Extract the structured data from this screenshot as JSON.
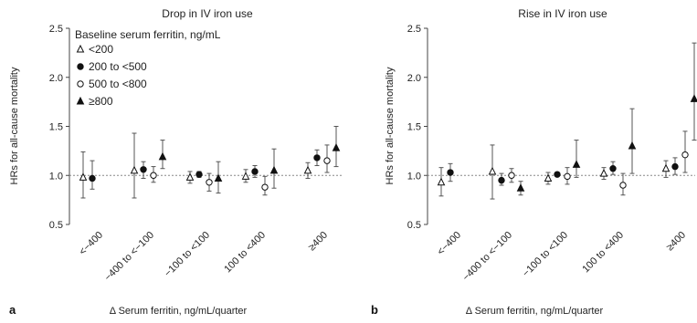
{
  "chart_data": [
    {
      "type": "scatter",
      "panel_label": "a",
      "title": "Drop in IV iron use",
      "xlabel": "Δ Serum ferritin, ng/mL/quarter",
      "ylabel": "HRs for all-cause mortality",
      "ylim": [
        0.5,
        2.5
      ],
      "yticks": [
        "0.5",
        "1.0",
        "1.5",
        "2.0",
        "2.5"
      ],
      "categories": [
        "<−400",
        "−400 to <−100",
        "−100 to <100",
        "100 to <400",
        "≥400"
      ],
      "reference_line": 1.0,
      "legend": {
        "title": "Baseline serum ferritin, ng/mL",
        "placement": "top-left"
      },
      "series": [
        {
          "name": "<200",
          "marker": "open-triangle",
          "values": [
            0.98,
            1.05,
            0.98,
            0.99,
            1.05
          ],
          "lower": [
            0.77,
            0.77,
            0.92,
            0.93,
            0.97
          ],
          "upper": [
            1.24,
            1.43,
            1.04,
            1.06,
            1.13
          ]
        },
        {
          "name": "200 to <500",
          "marker": "filled-circle",
          "values": [
            0.97,
            1.06,
            1.01,
            1.04,
            1.18
          ],
          "lower": [
            0.86,
            0.97,
            0.98,
            0.98,
            1.1
          ],
          "upper": [
            1.15,
            1.14,
            1.04,
            1.1,
            1.26
          ]
        },
        {
          "name": "500 to <800",
          "marker": "open-circle",
          "values": [
            null,
            1.0,
            0.93,
            0.88,
            1.15
          ],
          "lower": [
            null,
            0.93,
            0.84,
            0.8,
            1.03
          ],
          "upper": [
            null,
            1.09,
            1.02,
            0.99,
            1.31
          ]
        },
        {
          "name": "≥800",
          "marker": "filled-triangle",
          "values": [
            null,
            1.19,
            0.97,
            1.05,
            1.28
          ],
          "lower": [
            null,
            1.07,
            0.82,
            0.87,
            1.09
          ],
          "upper": [
            null,
            1.36,
            1.14,
            1.27,
            1.5
          ]
        }
      ]
    },
    {
      "type": "scatter",
      "panel_label": "b",
      "title": "Rise in IV iron use",
      "xlabel": "Δ Serum ferritin, ng/mL/quarter",
      "ylabel": "HRs for all-cause mortality",
      "ylim": [
        0.5,
        2.5
      ],
      "yticks": [
        "0.5",
        "1.0",
        "1.5",
        "2.0",
        "2.5"
      ],
      "categories": [
        "<−400",
        "−400 to <−100",
        "−100 to <100",
        "100 to <400",
        "≥400"
      ],
      "reference_line": 1.0,
      "series": [
        {
          "name": "<200",
          "marker": "open-triangle",
          "values": [
            0.93,
            1.04,
            0.97,
            1.02,
            1.07
          ],
          "lower": [
            0.79,
            0.76,
            0.91,
            0.96,
            0.98
          ],
          "upper": [
            1.08,
            1.31,
            1.03,
            1.08,
            1.15
          ]
        },
        {
          "name": "200 to <500",
          "marker": "filled-circle",
          "values": [
            1.03,
            0.95,
            1.01,
            1.07,
            1.09
          ],
          "lower": [
            0.94,
            0.9,
            0.99,
            1.01,
            1.01
          ],
          "upper": [
            1.12,
            1.02,
            1.03,
            1.14,
            1.18
          ]
        },
        {
          "name": "500 to <800",
          "marker": "open-circle",
          "values": [
            null,
            1.0,
            0.99,
            0.9,
            1.21
          ],
          "lower": [
            null,
            0.93,
            0.91,
            0.8,
            1.03
          ],
          "upper": [
            null,
            1.07,
            1.08,
            1.02,
            1.45
          ]
        },
        {
          "name": "≥800",
          "marker": "filled-triangle",
          "values": [
            null,
            0.87,
            1.11,
            1.3,
            1.78
          ],
          "lower": [
            null,
            0.8,
            0.98,
            1.02,
            1.36
          ],
          "upper": [
            null,
            0.94,
            1.36,
            1.68,
            2.35
          ]
        }
      ]
    }
  ]
}
